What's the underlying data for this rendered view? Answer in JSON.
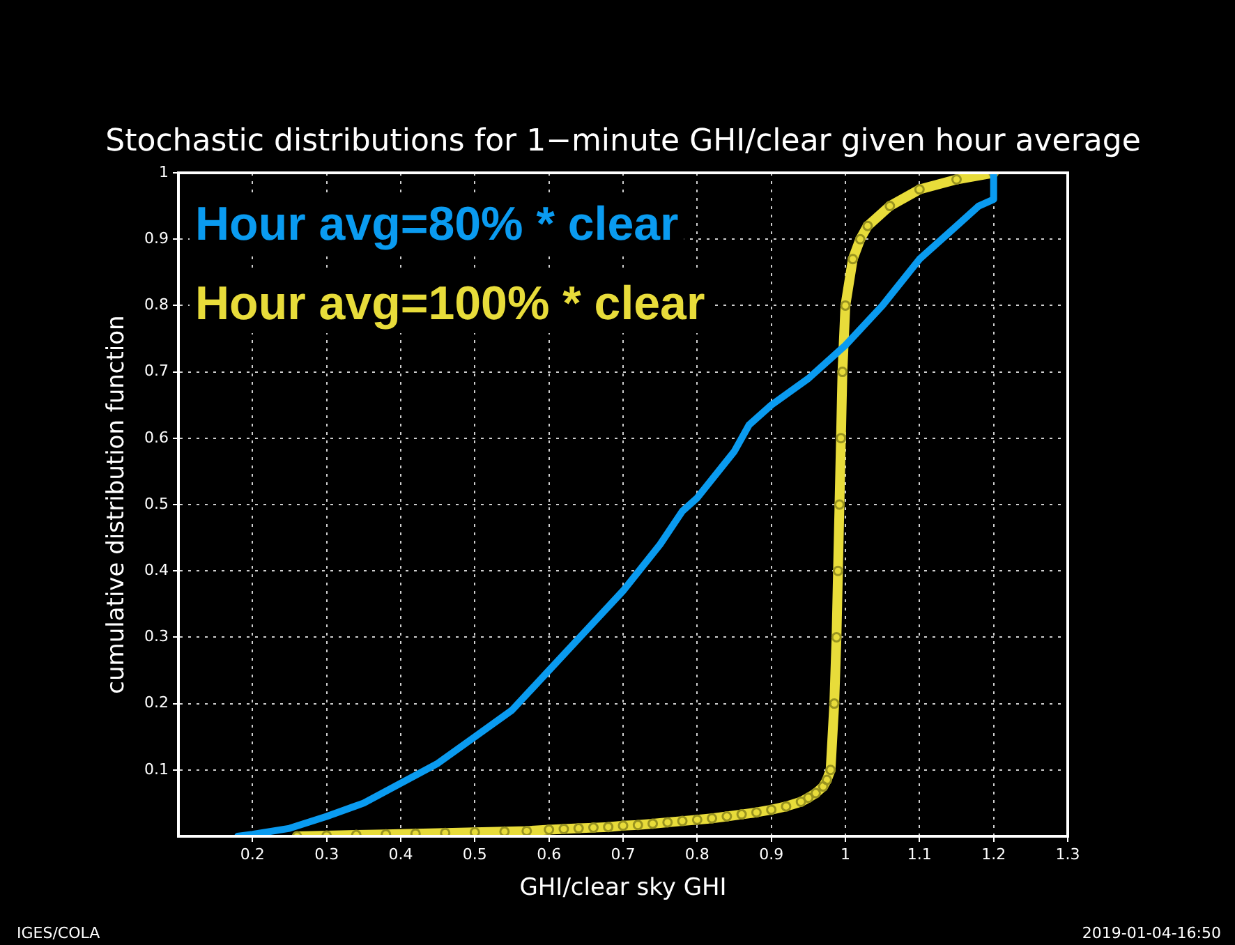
{
  "chart_data": {
    "type": "line",
    "title": "Stochastic distributions for 1−minute GHI/clear given hour average",
    "xlabel": "GHI/clear sky GHI",
    "ylabel": "cumulative distribution function",
    "series": [
      {
        "name": "Hour avg=80% * clear",
        "color": "#0a9bf0",
        "marker": "none",
        "x": [
          0.18,
          0.2,
          0.25,
          0.3,
          0.35,
          0.4,
          0.45,
          0.5,
          0.55,
          0.6,
          0.65,
          0.7,
          0.75,
          0.78,
          0.8,
          0.85,
          0.87,
          0.9,
          0.95,
          0.99,
          1.0,
          1.05,
          1.1,
          1.15,
          1.18,
          1.2,
          1.2
        ],
        "values": [
          0,
          0.003,
          0.012,
          0.03,
          0.05,
          0.08,
          0.11,
          0.15,
          0.19,
          0.25,
          0.31,
          0.37,
          0.44,
          0.49,
          0.51,
          0.58,
          0.62,
          0.65,
          0.69,
          0.73,
          0.74,
          0.8,
          0.87,
          0.92,
          0.95,
          0.96,
          1.0
        ]
      },
      {
        "name": "Hour avg=100% * clear",
        "color": "#e8dc3a",
        "marker": "circle",
        "x": [
          0.26,
          0.3,
          0.34,
          0.38,
          0.42,
          0.46,
          0.5,
          0.54,
          0.57,
          0.6,
          0.62,
          0.64,
          0.66,
          0.68,
          0.7,
          0.72,
          0.74,
          0.76,
          0.78,
          0.8,
          0.82,
          0.84,
          0.86,
          0.88,
          0.9,
          0.92,
          0.94,
          0.95,
          0.96,
          0.97,
          0.975,
          0.98,
          0.985,
          0.988,
          0.99,
          0.992,
          0.994,
          0.996,
          1.0,
          1.01,
          1.02,
          1.03,
          1.06,
          1.1,
          1.15,
          1.2
        ],
        "values": [
          0,
          0.001,
          0.002,
          0.003,
          0.004,
          0.005,
          0.006,
          0.007,
          0.008,
          0.01,
          0.011,
          0.012,
          0.013,
          0.014,
          0.016,
          0.017,
          0.019,
          0.021,
          0.023,
          0.025,
          0.027,
          0.03,
          0.033,
          0.036,
          0.04,
          0.045,
          0.052,
          0.058,
          0.065,
          0.075,
          0.085,
          0.1,
          0.2,
          0.3,
          0.4,
          0.5,
          0.6,
          0.7,
          0.8,
          0.87,
          0.9,
          0.92,
          0.95,
          0.975,
          0.99,
          1.0
        ]
      }
    ],
    "xlim": [
      0.1,
      1.3
    ],
    "xticks": [
      0.2,
      0.3,
      0.4,
      0.5,
      0.6,
      0.7,
      0.8,
      0.9,
      1,
      1.1,
      1.2,
      1.3
    ],
    "ylim": [
      0,
      1
    ],
    "yticks": [
      0.1,
      0.2,
      0.3,
      0.4,
      0.5,
      0.6,
      0.7,
      0.8,
      0.9,
      1
    ],
    "grid": true,
    "legend": "top left",
    "line_style": "solid",
    "annotations": [
      "IGES/COLA",
      "2019-01-04-16:50"
    ]
  }
}
